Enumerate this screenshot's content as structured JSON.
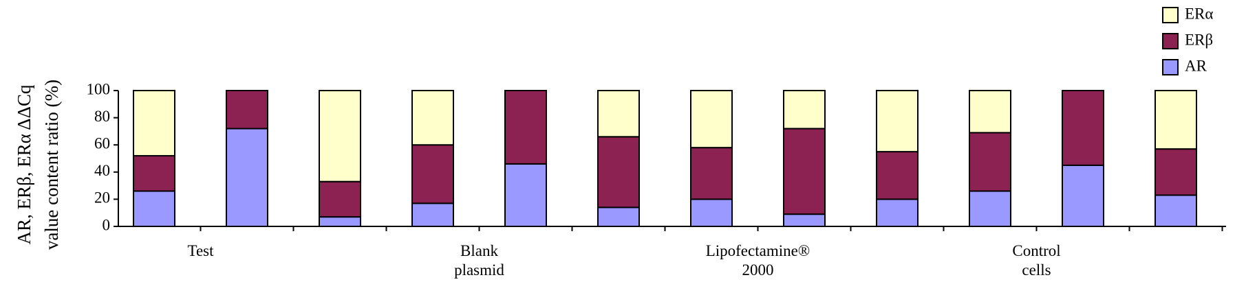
{
  "chart_data": {
    "type": "stacked-bar",
    "ylabel": [
      "AR, ERβ, ERα ΔΔCq",
      "value content ratio (%)"
    ],
    "categories": [
      [
        "Test"
      ],
      null,
      null,
      [
        "Blank",
        "plasmid"
      ],
      null,
      null,
      [
        "Lipofectamine®",
        "2000"
      ],
      null,
      null,
      [
        "Control",
        "cells"
      ],
      null,
      null
    ],
    "series": [
      {
        "name": "AR",
        "color": "#9999ff",
        "values": [
          26,
          72,
          7,
          17,
          46,
          14,
          20,
          9,
          20,
          26,
          45,
          23
        ]
      },
      {
        "name": "ERβ",
        "color": "#8b2252",
        "values": [
          26,
          28,
          26,
          43,
          54,
          52,
          38,
          63,
          35,
          43,
          55,
          34
        ]
      },
      {
        "name": "ERα",
        "color": "#ffffcc",
        "values": [
          48,
          0,
          67,
          40,
          0,
          34,
          42,
          28,
          45,
          31,
          0,
          43
        ]
      }
    ],
    "ylim": [
      0,
      100
    ],
    "yticks": [
      0,
      20,
      40,
      60,
      80,
      100
    ]
  }
}
